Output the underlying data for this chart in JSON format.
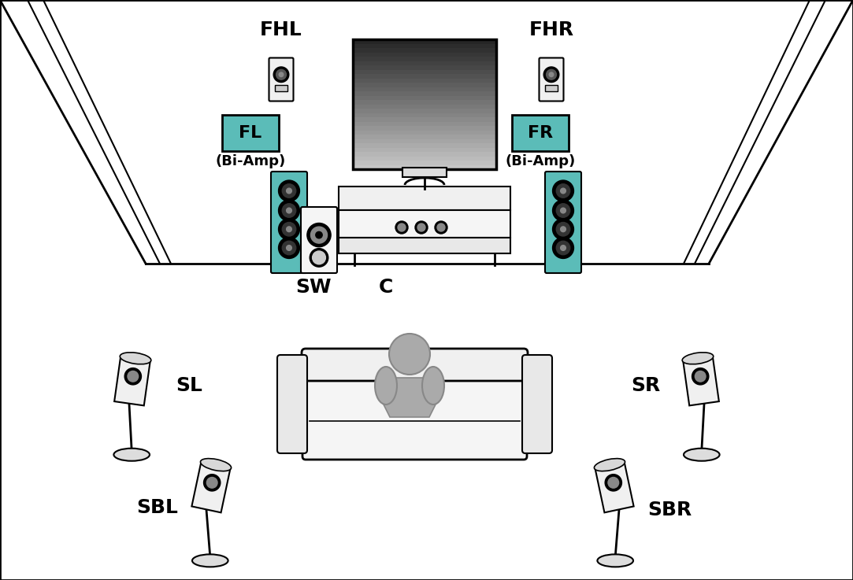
{
  "bg_color": "#ffffff",
  "teal_color": "#5bbcb8",
  "lw_main": 2.0,
  "lw_thin": 1.5,
  "figsize": [
    10.83,
    7.37
  ],
  "dpi": 100,
  "xlim": [
    0,
    1083
  ],
  "ylim": [
    0,
    737
  ]
}
